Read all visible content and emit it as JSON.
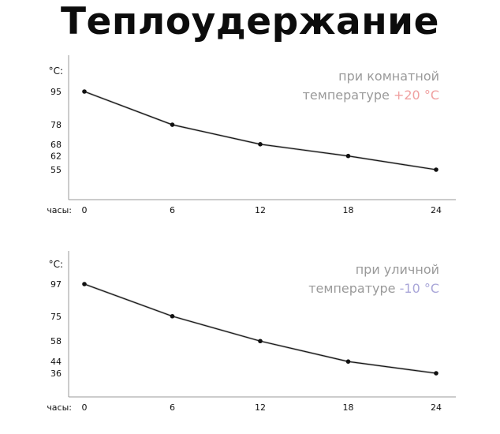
{
  "title": "Теплоудержание",
  "chart_data": [
    {
      "type": "line",
      "y_unit": "°C:",
      "x_unit": "часы:",
      "x": [
        0,
        6,
        12,
        18,
        24
      ],
      "values": [
        95,
        78,
        68,
        62,
        55
      ],
      "y_ticks": [
        95,
        78,
        68,
        62,
        55
      ],
      "caption_line1": "при комнатной",
      "caption_line2_prefix": "температуре ",
      "caption_value": "+20 °C",
      "caption_value_color": "#f0a0a0"
    },
    {
      "type": "line",
      "y_unit": "°C:",
      "x_unit": "часы:",
      "x": [
        0,
        6,
        12,
        18,
        24
      ],
      "values": [
        97,
        75,
        58,
        44,
        36
      ],
      "y_ticks": [
        97,
        75,
        58,
        44,
        36
      ],
      "caption_line1": "при уличной",
      "caption_line2_prefix": "температуре ",
      "caption_value": "-10 °C",
      "caption_value_color": "#a9a6d8"
    }
  ]
}
